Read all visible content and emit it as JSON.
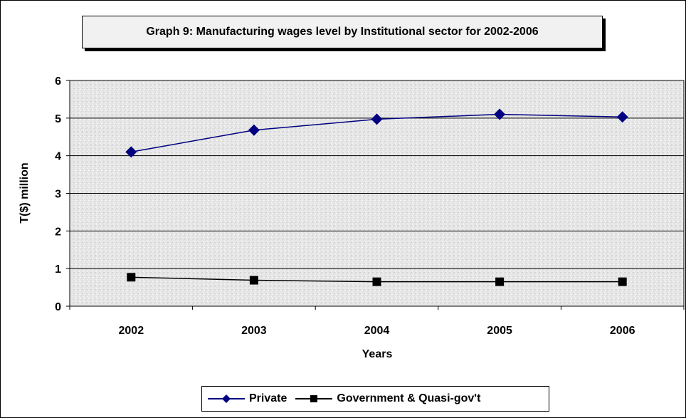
{
  "chart_data": {
    "type": "line",
    "title": "Graph 9: Manufacturing wages level by Institutional sector for 2002-2006",
    "xlabel": "Years",
    "ylabel": "T($) million",
    "categories": [
      "2002",
      "2003",
      "2004",
      "2005",
      "2006"
    ],
    "ylim": [
      0,
      6
    ],
    "yticks": [
      0,
      1,
      2,
      3,
      4,
      5,
      6
    ],
    "grid": true,
    "legend_position": "bottom",
    "series": [
      {
        "name": "Private",
        "values": [
          4.1,
          4.68,
          4.97,
          5.1,
          5.03
        ],
        "color": "#000080",
        "marker": "diamond"
      },
      {
        "name": "Government & Quasi-gov't",
        "values": [
          0.77,
          0.69,
          0.65,
          0.65,
          0.65
        ],
        "color": "#000000",
        "marker": "square"
      }
    ]
  }
}
